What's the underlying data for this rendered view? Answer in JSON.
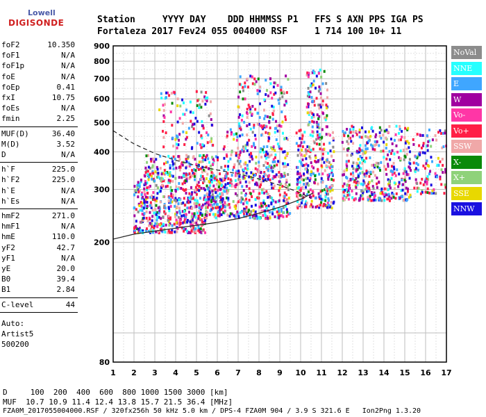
{
  "logo": {
    "line1": "Lowell",
    "line2": "DIGISONDE"
  },
  "header": {
    "line1": "Station     YYYY DAY    DDD HHMMSS P1   FFS S AXN PPS IGA PS",
    "line2": "Fortaleza 2017 Fev24 055 004000 RSF     1 714 100 10+ 11"
  },
  "params": {
    "group1": [
      {
        "name": "foF2",
        "value": "10.350"
      },
      {
        "name": "foF1",
        "value": "N/A"
      },
      {
        "name": "foF1p",
        "value": "N/A"
      },
      {
        "name": "foE",
        "value": "N/A"
      },
      {
        "name": "foEp",
        "value": "0.41"
      },
      {
        "name": "fxI",
        "value": "10.75"
      },
      {
        "name": "foEs",
        "value": "N/A"
      },
      {
        "name": "fmin",
        "value": "2.25"
      }
    ],
    "group2": [
      {
        "name": "MUF(D)",
        "value": "36.40"
      },
      {
        "name": "M(D)",
        "value": "3.52"
      },
      {
        "name": "D",
        "value": "N/A"
      }
    ],
    "group3": [
      {
        "name": "h`F",
        "value": "225.0"
      },
      {
        "name": "h`F2",
        "value": "225.0"
      },
      {
        "name": "h`E",
        "value": "N/A"
      },
      {
        "name": "h`Es",
        "value": "N/A"
      }
    ],
    "group4": [
      {
        "name": "hmF2",
        "value": "271.0"
      },
      {
        "name": "hmF1",
        "value": "N/A"
      },
      {
        "name": "hmE",
        "value": "110.0"
      },
      {
        "name": "yF2",
        "value": "42.7"
      },
      {
        "name": "yF1",
        "value": "N/A"
      },
      {
        "name": "yE",
        "value": "20.0"
      },
      {
        "name": "B0",
        "value": "39.4"
      },
      {
        "name": "B1",
        "value": "2.84"
      }
    ],
    "group5": [
      {
        "name": "C-level",
        "value": "44"
      }
    ],
    "auto": {
      "line1": "Auto:",
      "line2": "Artist5",
      "line3": "500200"
    }
  },
  "legend": [
    {
      "label": "NoVal",
      "color": "#8c8c8c"
    },
    {
      "label": "NNE",
      "color": "#26ffff"
    },
    {
      "label": "E",
      "color": "#3fa6ff"
    },
    {
      "label": "W",
      "color": "#a000a0"
    },
    {
      "label": "Vo-",
      "color": "#ff36a6"
    },
    {
      "label": "Vo+",
      "color": "#ff1f46"
    },
    {
      "label": "SSW",
      "color": "#f0a8a8"
    },
    {
      "label": "X-",
      "color": "#0a8a0a"
    },
    {
      "label": "X+",
      "color": "#8fd27a"
    },
    {
      "label": "SSE",
      "color": "#e8d800"
    },
    {
      "label": "NNW",
      "color": "#1a10e0"
    }
  ],
  "bottom": {
    "line1": "D     100  200  400  600  800 1000 1500 3000 [km]",
    "line2": "MUF  10.7 10.9 11.4 12.4 13.8 15.7 21.5 36.4 [MHz]",
    "line3": "FZA0M_2017055004000.RSF / 320fx256h 50 kHz 5.0 km / DPS-4 FZA0M 904 / 3.9 S 321.6 E   Ion2Png 1.3.20"
  },
  "chart_data": {
    "type": "scatter",
    "x_ticks": [
      "1",
      "2",
      "3",
      "4",
      "5",
      "6",
      "7",
      "8",
      "9",
      "10",
      "11",
      "12",
      "13",
      "14",
      "15",
      "16",
      "17"
    ],
    "y_ticks": [
      "80",
      "200",
      "300",
      "400",
      "500",
      "600",
      "700",
      "800",
      "900"
    ],
    "xlim": [
      1,
      17
    ],
    "y_scale": "log",
    "ylim": [
      80,
      900
    ],
    "grid": true,
    "clusters": [
      {
        "fmin": 2.0,
        "fmax": 5.5,
        "hmin": 215,
        "hmax": 260,
        "n": 260
      },
      {
        "fmin": 2.0,
        "fmax": 6.5,
        "hmin": 260,
        "hmax": 330,
        "n": 320
      },
      {
        "fmin": 2.5,
        "fmax": 6.2,
        "hmin": 330,
        "hmax": 390,
        "n": 160
      },
      {
        "fmin": 3.2,
        "fmax": 5.8,
        "hmin": 410,
        "hmax": 640,
        "n": 110
      },
      {
        "fmin": 5.5,
        "fmax": 9.5,
        "hmin": 240,
        "hmax": 330,
        "n": 320
      },
      {
        "fmin": 6.3,
        "fmax": 9.4,
        "hmin": 330,
        "hmax": 480,
        "n": 220
      },
      {
        "fmin": 7.0,
        "fmax": 9.4,
        "hmin": 480,
        "hmax": 720,
        "n": 120
      },
      {
        "fmin": 9.8,
        "fmax": 11.6,
        "hmin": 260,
        "hmax": 480,
        "n": 280
      },
      {
        "fmin": 10.3,
        "fmax": 11.3,
        "hmin": 480,
        "hmax": 750,
        "n": 90
      },
      {
        "fmin": 12.0,
        "fmax": 15.3,
        "hmin": 275,
        "hmax": 490,
        "n": 420
      },
      {
        "fmin": 15.4,
        "fmax": 17.0,
        "hmin": 290,
        "hmax": 480,
        "n": 110
      }
    ],
    "curves": [
      {
        "points": [
          [
            1.0,
            470
          ],
          [
            2.0,
            425
          ],
          [
            3.0,
            395
          ],
          [
            4.0,
            375
          ],
          [
            5.0,
            360
          ],
          [
            6.0,
            348
          ],
          [
            7.0,
            338
          ],
          [
            8.0,
            325
          ],
          [
            9.0,
            310
          ],
          [
            10.0,
            292
          ],
          [
            10.5,
            280
          ]
        ]
      },
      {
        "points": [
          [
            1.0,
            205
          ],
          [
            2.0,
            213
          ],
          [
            3.0,
            218
          ],
          [
            4.0,
            223
          ],
          [
            5.0,
            228
          ],
          [
            6.0,
            233
          ],
          [
            7.0,
            240
          ],
          [
            8.0,
            250
          ],
          [
            9.0,
            262
          ],
          [
            10.0,
            278
          ],
          [
            10.6,
            292
          ]
        ]
      }
    ]
  }
}
